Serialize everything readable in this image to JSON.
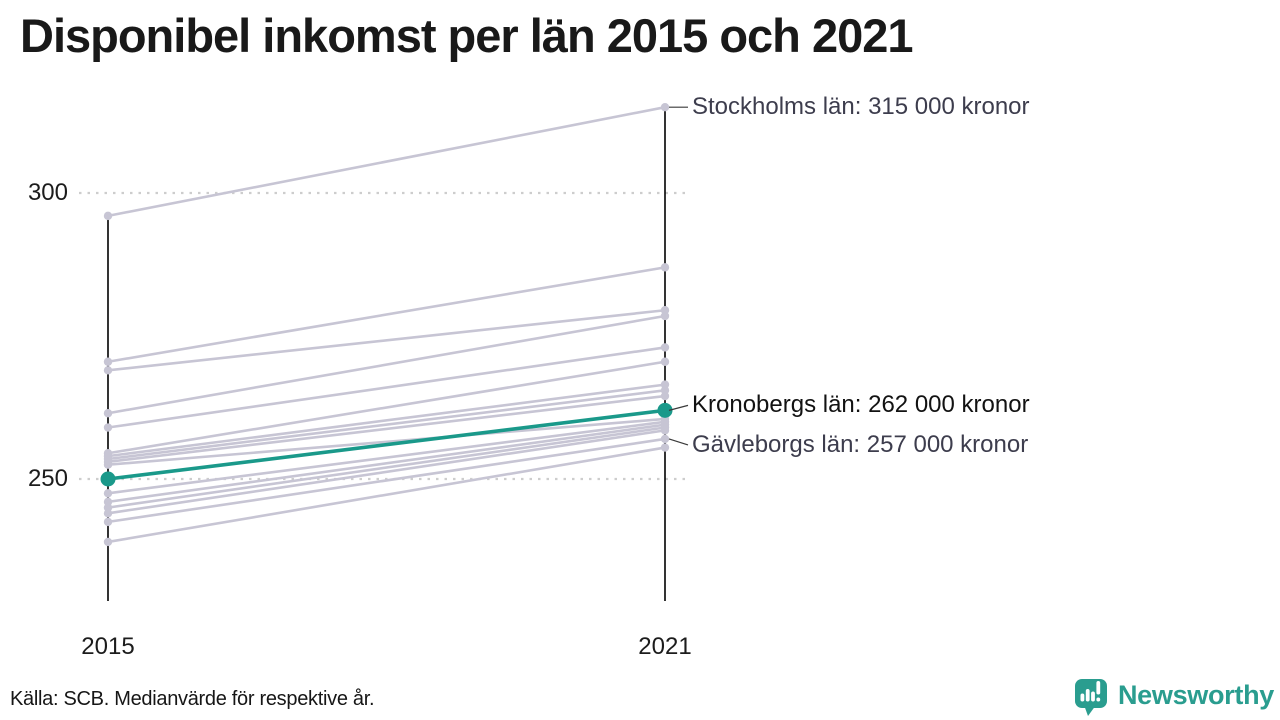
{
  "header": {
    "title": "Disponibel inkomst per län 2015 och 2021"
  },
  "footer": {
    "source": "Källa: SCB. Medianvärde för respektive år."
  },
  "branding": {
    "name": "Newsworthy",
    "icon": "speech-bubble-bar-chart-icon",
    "color": "#2a9d8f"
  },
  "chart_data": {
    "type": "line",
    "subtype": "slopegraph",
    "title": "Disponibel inkomst per län 2015 och 2021",
    "x_categories": [
      "2015",
      "2021"
    ],
    "y_ticks": [
      300,
      250
    ],
    "y_tick_labels": [
      "300",
      "250"
    ],
    "unit": "tusen kronor (1 000 SEK)",
    "ylim": [
      229,
      318
    ],
    "grid": "dotted-horizontal",
    "legend": "none",
    "series": [
      {
        "name": "Stockholms län",
        "values": [
          296,
          315
        ],
        "highlight": false,
        "labeled": true
      },
      {
        "name": "",
        "values": [
          270.5,
          287
        ],
        "highlight": false,
        "labeled": false
      },
      {
        "name": "",
        "values": [
          269,
          279.5
        ],
        "highlight": false,
        "labeled": false
      },
      {
        "name": "",
        "values": [
          261.5,
          278.5
        ],
        "highlight": false,
        "labeled": false
      },
      {
        "name": "",
        "values": [
          259,
          273
        ],
        "highlight": false,
        "labeled": false
      },
      {
        "name": "",
        "values": [
          254.5,
          270.5
        ],
        "highlight": false,
        "labeled": false
      },
      {
        "name": "",
        "values": [
          254,
          266.5
        ],
        "highlight": false,
        "labeled": false
      },
      {
        "name": "",
        "values": [
          253.5,
          265.5
        ],
        "highlight": false,
        "labeled": false
      },
      {
        "name": "",
        "values": [
          253,
          264.5
        ],
        "highlight": false,
        "labeled": false
      },
      {
        "name": "",
        "values": [
          252.5,
          260.5
        ],
        "highlight": false,
        "labeled": false
      },
      {
        "name": "Kronobergs län",
        "values": [
          250,
          262
        ],
        "highlight": true,
        "labeled": true
      },
      {
        "name": "",
        "values": [
          247.5,
          260
        ],
        "highlight": false,
        "labeled": false
      },
      {
        "name": "",
        "values": [
          246,
          259.5
        ],
        "highlight": false,
        "labeled": false
      },
      {
        "name": "",
        "values": [
          245,
          259
        ],
        "highlight": false,
        "labeled": false
      },
      {
        "name": "",
        "values": [
          244,
          258.5
        ],
        "highlight": false,
        "labeled": false
      },
      {
        "name": "Gävleborgs län",
        "values": [
          242.5,
          257
        ],
        "highlight": false,
        "labeled": true
      },
      {
        "name": "",
        "values": [
          239,
          255.5
        ],
        "highlight": false,
        "labeled": false
      }
    ],
    "annotations": [
      {
        "text": "Stockholms län: 315 000 kronor",
        "value": 315,
        "color": "#3d3d4d"
      },
      {
        "text": "Kronobergs län: 262 000 kronor",
        "value": 262,
        "color": "#121212"
      },
      {
        "text": "Gävleborgs län: 257 000 kronor",
        "value": 257,
        "color": "#3d3d4d"
      }
    ],
    "colors": {
      "line": "#c7c5d4",
      "highlight": "#1a998a",
      "axis": "#000000",
      "grid": "#cdcdcd",
      "leader": "#3a3a3a"
    }
  }
}
